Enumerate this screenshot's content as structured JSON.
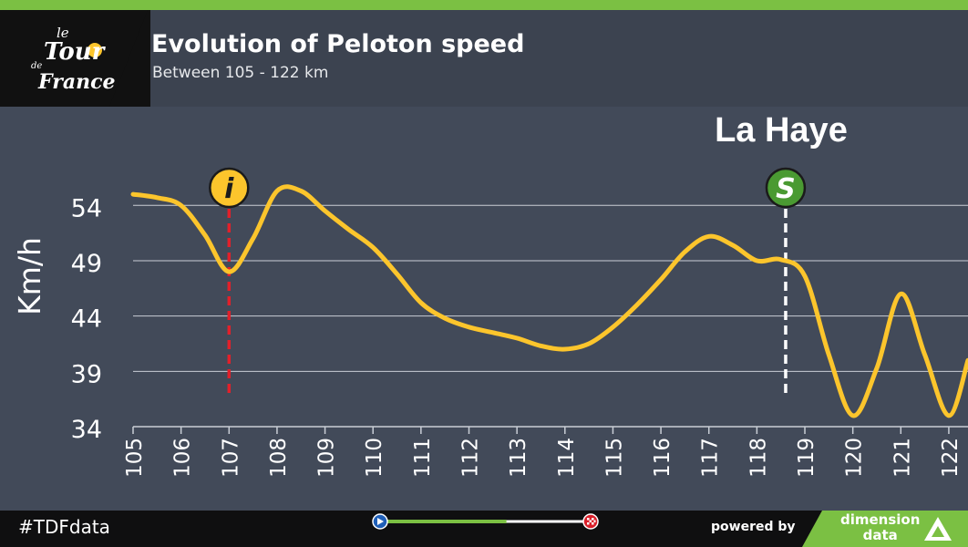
{
  "header": {
    "title": "Evolution of Peloton speed",
    "subtitle": "Between 105 - 122 km",
    "logo": {
      "line1": "le",
      "line2": "Tour",
      "line3": "de",
      "line4": "France"
    }
  },
  "colors": {
    "top_bar": "#7bc043",
    "curve": "#fcc52c",
    "intermediate_line": "#e2202a",
    "sprint_line": "#ffffff",
    "gridline": "#c9ced6",
    "plot_bg": "#424a59"
  },
  "chart_data": {
    "type": "line",
    "title": "Evolution of Peloton speed",
    "subtitle": "Between 105 - 122 km",
    "xlabel": "",
    "ylabel": "Km/h",
    "xlim": [
      105,
      122.4
    ],
    "ylim": [
      34,
      56
    ],
    "x_ticks": [
      105,
      106,
      107,
      108,
      109,
      110,
      111,
      112,
      113,
      114,
      115,
      116,
      117,
      118,
      119,
      120,
      121,
      122
    ],
    "y_ticks": [
      34,
      39,
      44,
      49,
      54
    ],
    "grid": "horizontal",
    "series": [
      {
        "name": "",
        "x": [
          105,
          105.5,
          106,
          106.5,
          107,
          107.5,
          108,
          108.5,
          109,
          109.5,
          110,
          110.5,
          111,
          111.5,
          112,
          112.5,
          113,
          113.5,
          114,
          114.5,
          115,
          115.5,
          116,
          116.5,
          117,
          117.5,
          118,
          118.5,
          119,
          119.5,
          120,
          120.5,
          121,
          121.5,
          122,
          122.4
        ],
        "y": [
          55,
          54.7,
          54,
          51.3,
          48,
          51,
          55.3,
          55.3,
          53.5,
          51.8,
          50.2,
          47.8,
          45.2,
          43.8,
          43.0,
          42.5,
          42.0,
          41.3,
          41.0,
          41.5,
          43.0,
          45.0,
          47.3,
          49.8,
          51.2,
          50.4,
          49.0,
          49.1,
          47.6,
          40.5,
          35.0,
          39.3,
          46.0,
          40.5,
          35.0,
          40.0
        ]
      }
    ],
    "markers": [
      {
        "type": "intermediate",
        "label": "i",
        "x": 107
      },
      {
        "type": "sprint",
        "label": "S",
        "x": 118.6,
        "place": "La Haye"
      }
    ]
  },
  "footer": {
    "hashtag": "#TDFdata",
    "powered_by": "powered by",
    "brand_line1": "dimension",
    "brand_line2": "data",
    "progress": 0.6
  }
}
